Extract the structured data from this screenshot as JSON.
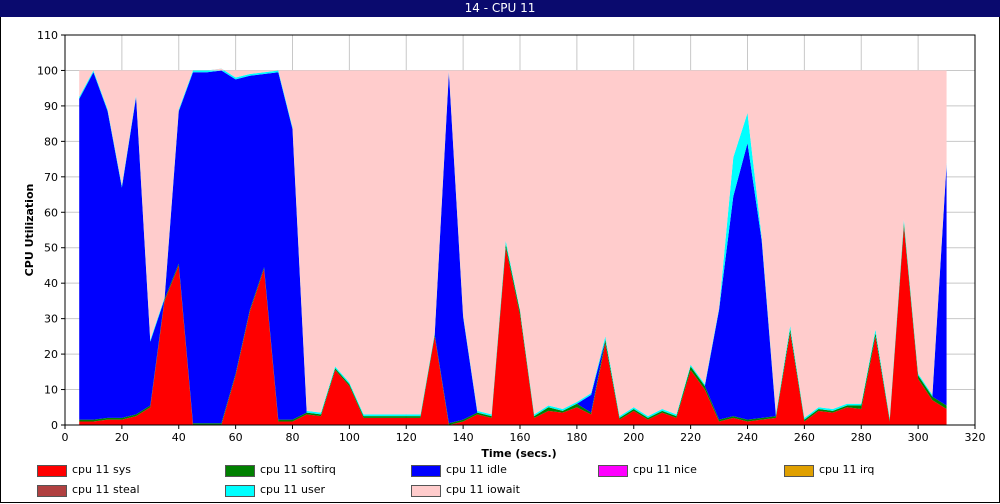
{
  "window": {
    "title": "14 - CPU 11"
  },
  "chart_data": {
    "type": "area",
    "stacked": true,
    "title": "14 - CPU 11",
    "xlabel": "Time (secs.)",
    "ylabel": "CPU Utilization",
    "xlim": [
      0,
      320
    ],
    "ylim": [
      0,
      110
    ],
    "x_ticks": [
      0,
      20,
      40,
      60,
      80,
      100,
      120,
      140,
      160,
      180,
      200,
      220,
      240,
      260,
      280,
      300,
      320
    ],
    "y_ticks": [
      0,
      10,
      20,
      30,
      40,
      50,
      60,
      70,
      80,
      90,
      100,
      110
    ],
    "grid": true,
    "legend_position": "bottom",
    "x": [
      5,
      10,
      15,
      20,
      25,
      30,
      35,
      40,
      45,
      50,
      55,
      60,
      65,
      70,
      75,
      80,
      85,
      90,
      95,
      100,
      105,
      110,
      115,
      120,
      125,
      130,
      135,
      140,
      145,
      150,
      155,
      160,
      165,
      170,
      175,
      180,
      185,
      190,
      195,
      200,
      205,
      210,
      215,
      220,
      225,
      230,
      235,
      240,
      245,
      250,
      255,
      260,
      265,
      270,
      275,
      280,
      285,
      290,
      295,
      300,
      305,
      310
    ],
    "series": [
      {
        "name": "cpu 11 sys",
        "color": "#ff0000",
        "values": [
          1,
          1,
          1.5,
          1.5,
          2.5,
          5,
          35,
          45,
          0,
          0,
          0,
          14,
          32,
          44,
          1,
          1,
          3,
          2.5,
          15.5,
          11,
          2,
          2,
          2,
          2,
          2,
          25,
          0,
          1,
          3,
          2,
          50,
          31,
          2,
          4,
          3.5,
          5,
          3,
          23,
          1.5,
          4,
          1.5,
          3.5,
          2,
          15.5,
          10,
          1,
          2,
          1,
          1.5,
          2,
          26,
          1,
          4,
          3.5,
          5,
          4.5,
          25,
          1,
          56,
          13,
          7,
          4.5
        ]
      },
      {
        "name": "cpu 11 softirq",
        "color": "#008000",
        "values": [
          0.5,
          0.5,
          0.5,
          0.5,
          0.5,
          0.5,
          0.5,
          0.5,
          0.5,
          0.5,
          0.5,
          0.5,
          0.5,
          0.5,
          0.5,
          0.5,
          0.5,
          0.5,
          0.5,
          0.5,
          0.5,
          0.5,
          0.5,
          0.5,
          0.5,
          0.5,
          0.5,
          0.5,
          0.5,
          0.5,
          1,
          1,
          0.5,
          1,
          0.5,
          1,
          0.5,
          1,
          0.5,
          0.5,
          0.5,
          0.5,
          0.5,
          1,
          1,
          0.5,
          0.5,
          0.5,
          0.5,
          0.5,
          1,
          0.5,
          0.5,
          0.5,
          0.5,
          1,
          1,
          0.5,
          1,
          1,
          1,
          1
        ]
      },
      {
        "name": "cpu 11 idle",
        "color": "#0000ff",
        "values": [
          90.5,
          98,
          86.5,
          65,
          89.5,
          18,
          0,
          43,
          99,
          99,
          99.5,
          83,
          66,
          54.5,
          98,
          82,
          0,
          0,
          0,
          0,
          0,
          0,
          0,
          0,
          0,
          0,
          99,
          29,
          0,
          0,
          0,
          0,
          0,
          0,
          0,
          0,
          5,
          0,
          0,
          0,
          0,
          0,
          0,
          0,
          0,
          31,
          62,
          78,
          50,
          0,
          0,
          0,
          0,
          0,
          0,
          0,
          0,
          0,
          0,
          0,
          0,
          68
        ]
      },
      {
        "name": "cpu 11 nice",
        "color": "#ff00ff",
        "values": [
          0,
          0,
          0,
          0,
          0,
          0,
          0,
          0,
          0,
          0,
          0,
          0,
          0,
          0,
          0,
          0,
          0,
          0,
          0,
          0,
          0,
          0,
          0,
          0,
          0,
          0,
          0,
          0,
          0,
          0,
          0,
          0,
          0,
          0,
          0,
          0,
          0,
          0,
          0,
          0,
          0,
          0,
          0,
          0,
          0,
          0,
          0,
          0,
          0,
          0,
          0,
          0,
          0,
          0,
          0,
          0,
          0,
          0,
          0,
          0,
          0,
          0
        ]
      },
      {
        "name": "cpu 11 irq",
        "color": "#e0a000",
        "values": [
          0,
          0,
          0,
          0,
          0,
          0,
          0,
          0,
          0,
          0,
          0,
          0,
          0,
          0,
          0,
          0,
          0,
          0,
          0,
          0,
          0,
          0,
          0,
          0,
          0,
          0,
          0,
          0,
          0,
          0,
          0,
          0,
          0,
          0,
          0,
          0,
          0,
          0,
          0,
          0,
          0,
          0,
          0,
          0,
          0,
          0,
          0,
          0,
          0,
          0,
          0,
          0,
          0,
          0,
          0,
          0,
          0,
          0,
          0,
          0,
          0,
          0
        ]
      },
      {
        "name": "cpu 11 steal",
        "color": "#b04040",
        "values": [
          0,
          0,
          0,
          0,
          0,
          0,
          0,
          0,
          0,
          0,
          0,
          0,
          0,
          0,
          0,
          0,
          0,
          0,
          0,
          0,
          0,
          0,
          0,
          0,
          0,
          0,
          0,
          0,
          0,
          0,
          0,
          0,
          0,
          0,
          0,
          0,
          0,
          0,
          0,
          0,
          0,
          0,
          0,
          0,
          0,
          0,
          0,
          0,
          0,
          0,
          0,
          0,
          0,
          0,
          0,
          0,
          0,
          0,
          0,
          0,
          0,
          0
        ]
      },
      {
        "name": "cpu 11 user",
        "color": "#00ffff",
        "values": [
          0.5,
          0.5,
          0.5,
          0.5,
          0.5,
          0.5,
          0.5,
          0.5,
          0.5,
          0.5,
          0.5,
          0.5,
          0.5,
          0.5,
          0.5,
          0.5,
          0.5,
          0.5,
          0.5,
          0.5,
          0.5,
          0.5,
          0.5,
          0.5,
          0.5,
          0.5,
          0.5,
          0.5,
          0.5,
          0.5,
          1,
          0.5,
          0.5,
          0.5,
          0.5,
          0.5,
          0.5,
          1,
          0.5,
          0.5,
          0.5,
          0.5,
          0.5,
          0.5,
          0.5,
          0.5,
          11,
          8.5,
          1,
          0.5,
          1,
          0.5,
          0.5,
          0.5,
          0.5,
          0.5,
          1,
          0.5,
          1,
          0.5,
          0.5,
          0.5
        ]
      },
      {
        "name": "cpu 11 iowait",
        "color": "#ffcccc",
        "fill_to": 100
      }
    ]
  }
}
